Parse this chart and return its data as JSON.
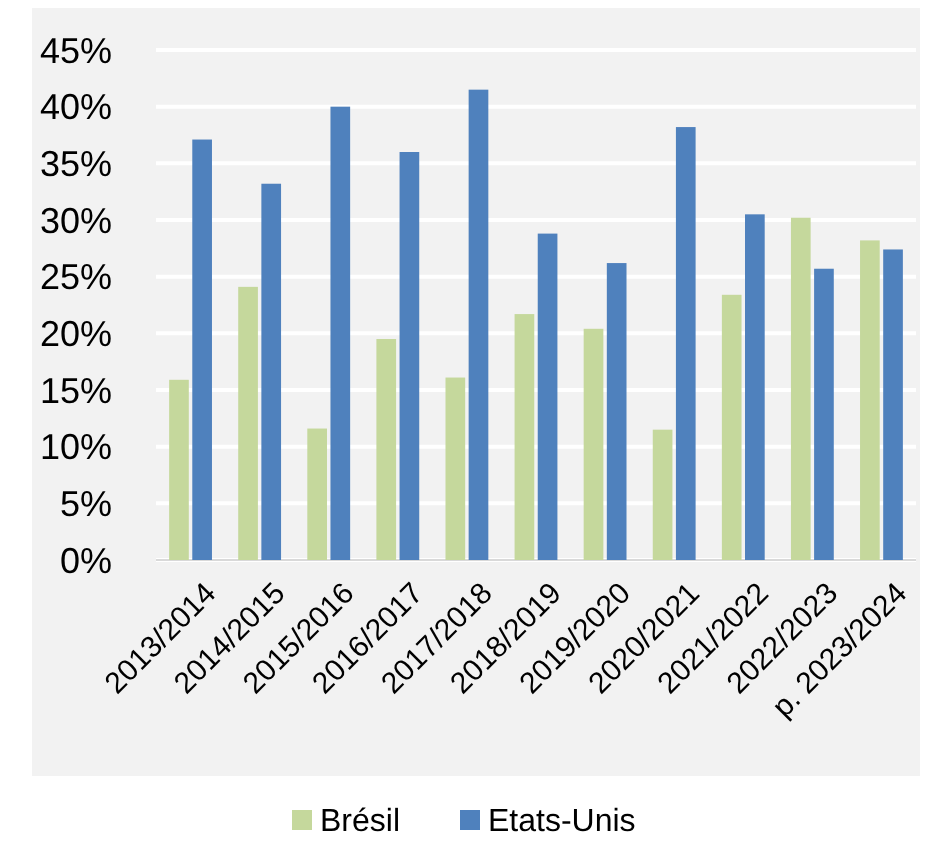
{
  "chart_data": {
    "type": "bar",
    "categories": [
      "2013/2014",
      "2014/2015",
      "2015/2016",
      "2016/2017",
      "2017/2018",
      "2018/2019",
      "2019/2020",
      "2020/2021",
      "2021/2022",
      "2022/2023",
      "p. 2023/2024"
    ],
    "series": [
      {
        "name": "Brésil",
        "color": "#c5d89c",
        "values": [
          15.9,
          24.1,
          11.6,
          19.5,
          16.1,
          21.7,
          20.4,
          11.5,
          23.4,
          30.2,
          28.2
        ]
      },
      {
        "name": "Etats-Unis",
        "color": "#4f81bd",
        "values": [
          37.1,
          33.2,
          40.0,
          36.0,
          41.5,
          28.8,
          26.2,
          38.2,
          30.5,
          25.7,
          27.4
        ]
      }
    ],
    "ylim": [
      0,
      45
    ],
    "yticks": [
      {
        "value": 0,
        "label": "0%"
      },
      {
        "value": 5,
        "label": "5%"
      },
      {
        "value": 10,
        "label": "10%"
      },
      {
        "value": 15,
        "label": "15%"
      },
      {
        "value": 20,
        "label": "20%"
      },
      {
        "value": 25,
        "label": "25%"
      },
      {
        "value": 30,
        "label": "30%"
      },
      {
        "value": 35,
        "label": "35%"
      },
      {
        "value": 40,
        "label": "40%"
      },
      {
        "value": 45,
        "label": "45%"
      }
    ],
    "grid": "y",
    "legend": "bottom"
  }
}
